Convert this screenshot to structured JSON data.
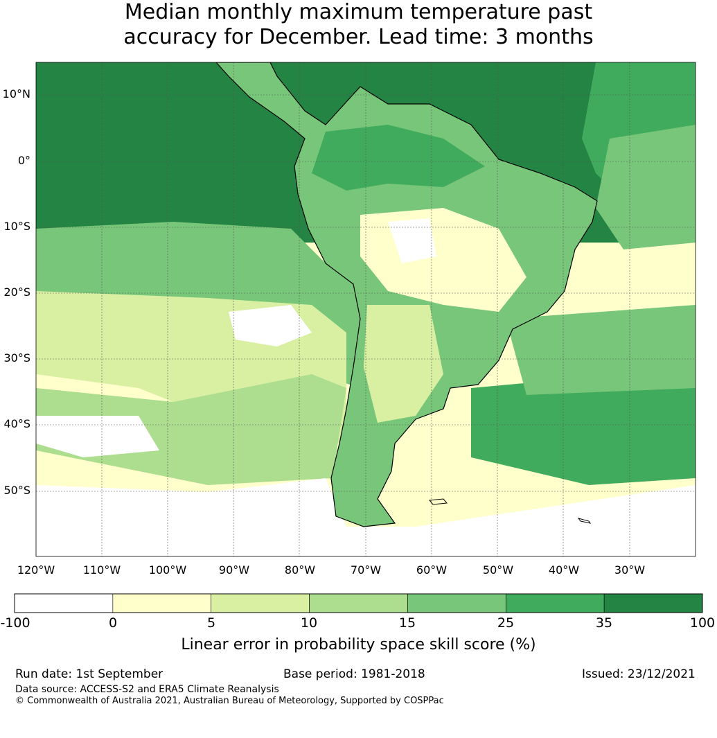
{
  "title": {
    "line1": "Median monthly maximum temperature past",
    "line2": "accuracy for December. Lead time: 3 months"
  },
  "map": {
    "lat_labels": [
      "10°N",
      "0°",
      "10°S",
      "20°S",
      "30°S",
      "40°S",
      "50°S"
    ],
    "lon_labels": [
      "120°W",
      "110°W",
      "100°W",
      "90°W",
      "80°W",
      "70°W",
      "60°W",
      "50°W",
      "40°W",
      "30°W"
    ],
    "extent": {
      "lon_min": -125,
      "lon_max": -25,
      "lat_min": -60,
      "lat_max": 15
    }
  },
  "colorbar": {
    "ticks": [
      "-100",
      "0",
      "5",
      "10",
      "15",
      "25",
      "35",
      "100"
    ],
    "colors": [
      "#ffffff",
      "#ffffcc",
      "#d9f0a3",
      "#addd8e",
      "#78c679",
      "#41ab5d",
      "#238443"
    ],
    "title": "Linear error in probability space skill score (%)"
  },
  "footer": {
    "run_date": "Run date: 1st September",
    "base_period": "Base period: 1981-2018",
    "issued": "Issued: 23/12/2021",
    "data_source": "Data source: ACCESS-S2 and ERA5 Climate Reanalysis",
    "copyright": "© Commonwealth of Australia 2021, Australian Bureau of Meteorology, Supported by COSPPac"
  }
}
